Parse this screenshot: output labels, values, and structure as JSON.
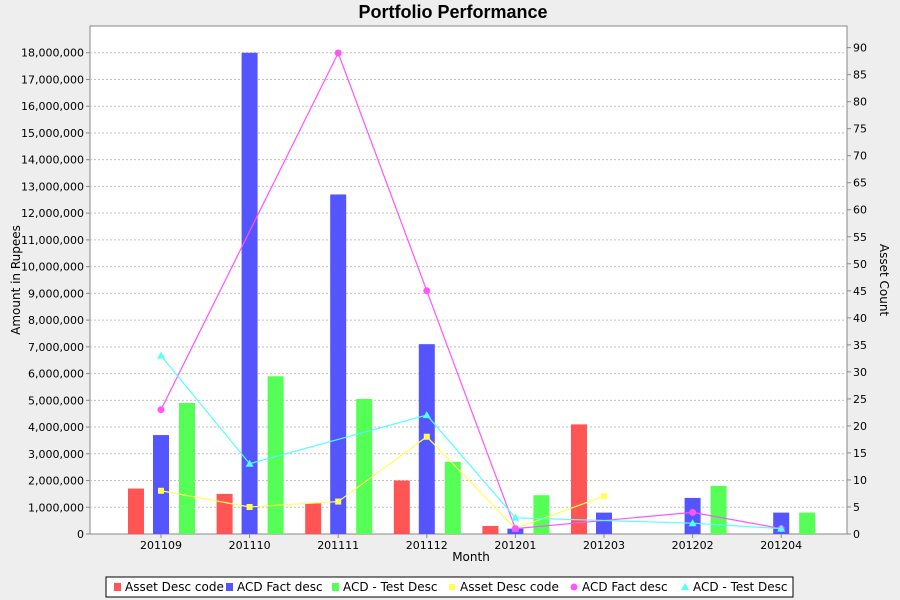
{
  "chart_data": {
    "type": "bar",
    "title": "Portfolio Performance",
    "xlabel": "Month",
    "ylabel": "Amount in Rupees",
    "y2label": "Asset Count",
    "categories": [
      "201109",
      "201110",
      "201111",
      "201112",
      "201201",
      "201203",
      "201202",
      "201204"
    ],
    "ylim": [
      0,
      19000000
    ],
    "yticks": [
      0,
      1000000,
      2000000,
      3000000,
      4000000,
      5000000,
      6000000,
      7000000,
      8000000,
      9000000,
      10000000,
      11000000,
      12000000,
      13000000,
      14000000,
      15000000,
      16000000,
      17000000,
      18000000
    ],
    "ytick_labels": [
      "0",
      "1,000,000",
      "2,000,000",
      "3,000,000",
      "4,000,000",
      "5,000,000",
      "6,000,000",
      "7,000,000",
      "8,000,000",
      "9,000,000",
      "10,000,000",
      "11,000,000",
      "12,000,000",
      "13,000,000",
      "14,000,000",
      "15,000,000",
      "16,000,000",
      "17,000,000",
      "18,000,000"
    ],
    "y2lim": [
      0,
      94
    ],
    "y2ticks": [
      0,
      5,
      10,
      15,
      20,
      25,
      30,
      35,
      40,
      45,
      50,
      55,
      60,
      65,
      70,
      75,
      80,
      85,
      90
    ],
    "grid": true,
    "legend_position": "bottom",
    "bar_series": [
      {
        "name": "Asset Desc code",
        "color": "#ff5555",
        "values": [
          1700000,
          1500000,
          1150000,
          2000000,
          300000,
          4100000,
          0,
          0
        ]
      },
      {
        "name": "ACD Fact desc",
        "color": "#5555ff",
        "values": [
          3700000,
          18000000,
          12700000,
          7100000,
          200000,
          800000,
          1350000,
          800000
        ]
      },
      {
        "name": "ACD - Test Desc",
        "color": "#55ff55",
        "values": [
          4900000,
          5900000,
          5050000,
          2700000,
          1450000,
          0,
          1800000,
          800000
        ]
      }
    ],
    "line_series": [
      {
        "name": "Asset Desc code",
        "color": "#ffff55",
        "marker": "square",
        "values": [
          8,
          5,
          6,
          18,
          1,
          7,
          null,
          null
        ]
      },
      {
        "name": "ACD Fact desc",
        "color": "#ff55ff",
        "marker": "circle",
        "values": [
          23,
          null,
          89,
          45,
          1,
          null,
          4,
          1
        ]
      },
      {
        "name": "ACD - Test Desc",
        "color": "#55ffff",
        "marker": "triangle",
        "values": [
          33,
          13,
          null,
          22,
          3,
          null,
          2,
          1
        ]
      }
    ]
  }
}
